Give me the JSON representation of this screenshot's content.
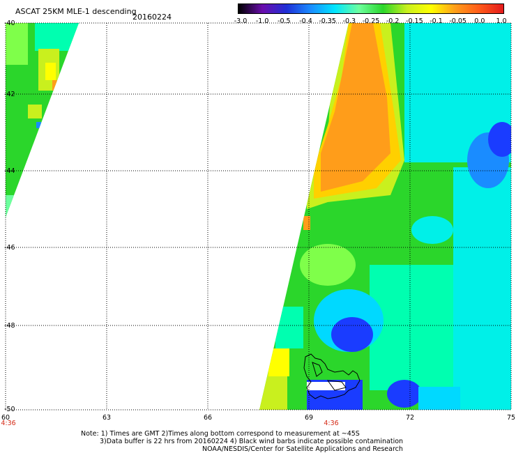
{
  "header": {
    "title": "ASCAT 25KM MLE-1 descending",
    "date": "20160224"
  },
  "colorbar": {
    "ticks": [
      "-3.0",
      "-1.0",
      "-0.5",
      "-0.4",
      "-0.35",
      "-0.3",
      "-0.25",
      "-0.2",
      "-0.15",
      "-0.1",
      "-0.05",
      "0.0",
      "1.0"
    ],
    "colors": [
      "#000000",
      "#6a0dad",
      "#1f2fd6",
      "#1a8cff",
      "#00e5ff",
      "#6dff9e",
      "#2bd62b",
      "#c9f01e",
      "#ffff00",
      "#ff9d1a",
      "#ff5a1a",
      "#e31a1c"
    ]
  },
  "map": {
    "lat_labels": [
      "-40",
      "-42",
      "-44",
      "-46",
      "-48",
      "-50"
    ],
    "lon_labels": [
      "60",
      "63",
      "66",
      "69",
      "72",
      "75"
    ],
    "time_labels": [
      "4:36",
      "4:36"
    ],
    "lat_range": [
      -50,
      -40
    ],
    "lon_range": [
      60,
      75
    ],
    "colors": {
      "green": "#2bd62b",
      "cyan": "#00ffff",
      "orange": "#ff9d1a",
      "yellow": "#ffff00",
      "blue": "#1a3cff",
      "lightgreen": "#7fff4a"
    }
  },
  "notes": {
    "line1": "Note: 1) Times are GMT 2)Times along bottom correspond to measurement at ~45S",
    "line2": "3)Data buffer is 22 hrs from 20160224 4) Black wind barbs indicate possible contamination",
    "line3": "NOAA/NESDIS/Center for Satellite Applications and Research"
  }
}
